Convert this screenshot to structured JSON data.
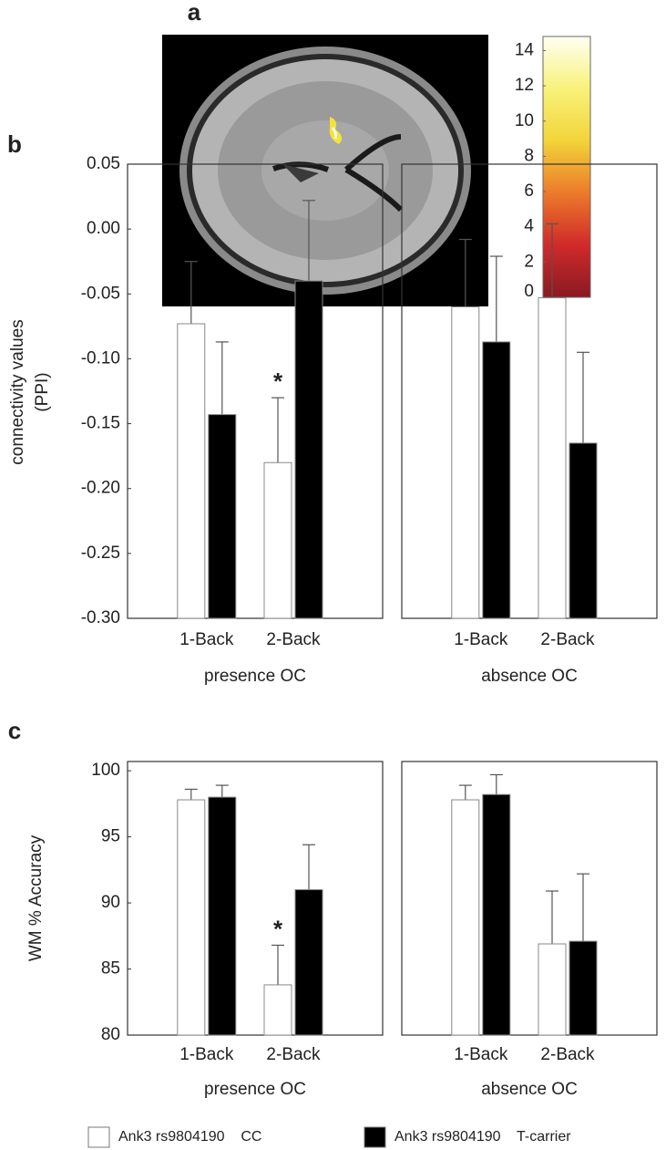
{
  "chart_data": [
    {
      "type": "colorbar",
      "panel_label": "a",
      "ylim": [
        0,
        14.8
      ],
      "yticks": [
        0,
        2,
        4,
        6,
        8,
        10,
        12,
        14
      ],
      "colormap": [
        "#8a1a22",
        "#d02a2a",
        "#ec7a2a",
        "#f2d43a",
        "#f8f27a",
        "#fffff2"
      ]
    },
    {
      "type": "bar",
      "panel_label": "b",
      "ylabel": [
        "connectivity values",
        "(PPI)"
      ],
      "ylim": [
        -0.3,
        0.05
      ],
      "yticks": [
        {
          "value": -0.3,
          "label": "-0.30"
        },
        -0.25,
        {
          "value": -0.2,
          "label": "-0.20"
        },
        -0.15,
        {
          "value": -0.1,
          "label": "-0.10"
        },
        -0.05,
        {
          "value": 0,
          "label": "0.00"
        },
        0.05
      ],
      "panels": [
        {
          "title": "presence OC",
          "categories": [
            "1-Back",
            "2-Back"
          ],
          "series": [
            {
              "color": "#ffffff",
              "values": [
                -0.073,
                -0.18
              ],
              "errors": [
                0.048,
                0.05
              ],
              "annotations": [
                null,
                "*"
              ]
            },
            {
              "color": "#000000",
              "values": [
                -0.143,
                -0.04
              ],
              "errors": [
                0.056,
                0.062
              ]
            }
          ]
        },
        {
          "title": "absence OC",
          "categories": [
            "1-Back",
            "2-Back"
          ],
          "series": [
            {
              "color": "#ffffff",
              "values": [
                -0.06,
                -0.053
              ],
              "errors": [
                0.052,
                0.057
              ]
            },
            {
              "color": "#000000",
              "values": [
                -0.087,
                -0.165
              ],
              "errors": [
                0.066,
                0.07
              ]
            }
          ]
        }
      ]
    },
    {
      "type": "bar",
      "panel_label": "c",
      "ylabel": [
        "WM % Accuracy"
      ],
      "ylim": [
        80,
        100.7
      ],
      "yticks": [
        80,
        85,
        90,
        95,
        100
      ],
      "panels": [
        {
          "title": "presence OC",
          "categories": [
            "1-Back",
            "2-Back"
          ],
          "series": [
            {
              "name": "Ank3 rs9804190    CC",
              "color": "#ffffff",
              "values": [
                97.8,
                83.8
              ],
              "errors": [
                0.8,
                3.0
              ],
              "annotations": [
                null,
                "*"
              ]
            },
            {
              "name": "Ank3 rs9804190    T-carrier",
              "color": "#000000",
              "values": [
                98.0,
                91.0
              ],
              "errors": [
                0.9,
                3.4
              ]
            }
          ]
        },
        {
          "title": "absence OC",
          "categories": [
            "1-Back",
            "2-Back"
          ],
          "series": [
            {
              "color": "#ffffff",
              "values": [
                97.8,
                86.9
              ],
              "errors": [
                1.1,
                4.0
              ]
            },
            {
              "color": "#000000",
              "values": [
                98.2,
                87.1
              ],
              "errors": [
                1.5,
                5.1
              ]
            }
          ]
        }
      ]
    }
  ]
}
